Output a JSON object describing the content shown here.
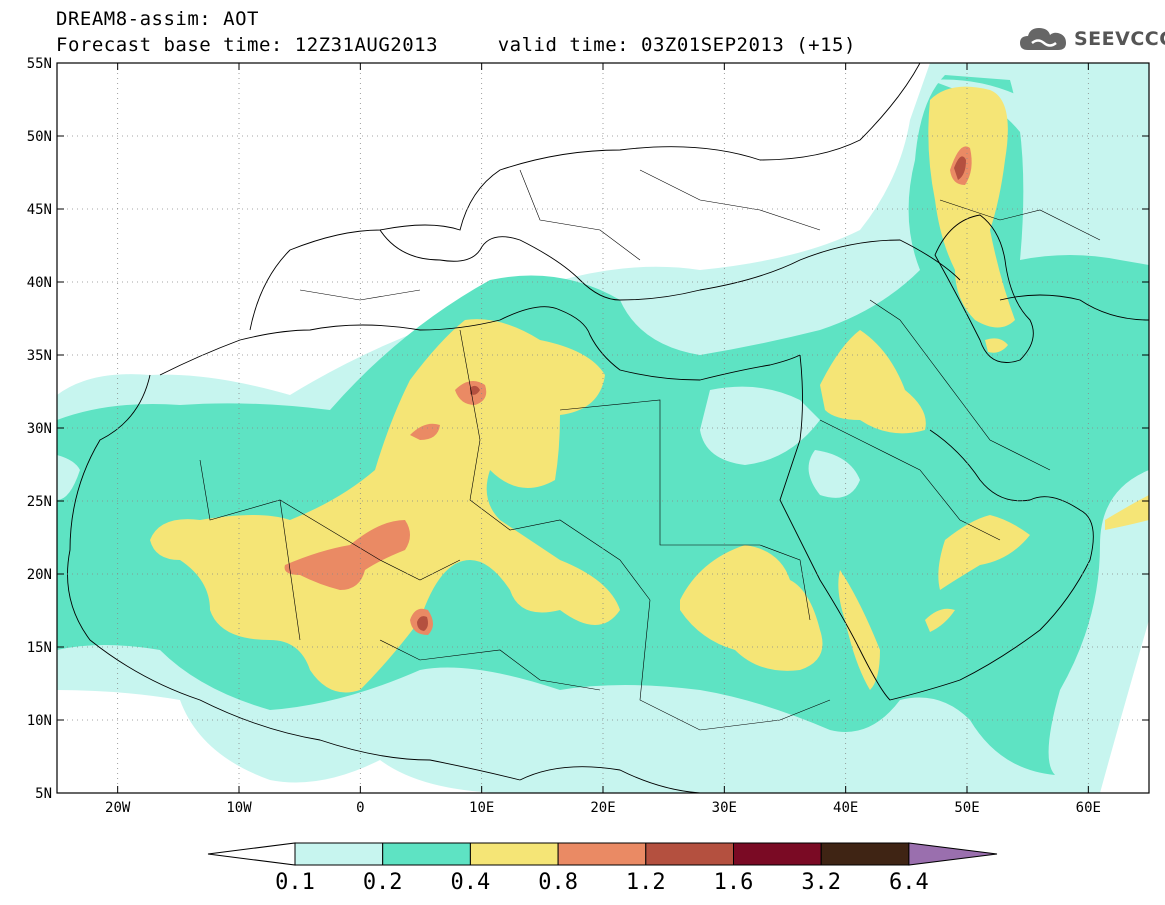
{
  "header": {
    "title": "DREAM8-assim: AOT",
    "subtitle": "Forecast base time: 12Z31AUG2013     valid time: 03Z01SEP2013 (+15)",
    "logo_text": "SEEVCCC",
    "logo_icon": "cloud-icon"
  },
  "map": {
    "lon_range": [
      -25,
      65
    ],
    "lat_range": [
      5,
      55
    ],
    "lon_ticks": [
      {
        "v": -20,
        "label": "20W"
      },
      {
        "v": -10,
        "label": "10W"
      },
      {
        "v": 0,
        "label": "0"
      },
      {
        "v": 10,
        "label": "10E"
      },
      {
        "v": 20,
        "label": "20E"
      },
      {
        "v": 30,
        "label": "30E"
      },
      {
        "v": 40,
        "label": "40E"
      },
      {
        "v": 50,
        "label": "50E"
      },
      {
        "v": 60,
        "label": "60E"
      }
    ],
    "lat_ticks": [
      {
        "v": 5,
        "label": "5N"
      },
      {
        "v": 10,
        "label": "10N"
      },
      {
        "v": 15,
        "label": "15N"
      },
      {
        "v": 20,
        "label": "20N"
      },
      {
        "v": 25,
        "label": "25N"
      },
      {
        "v": 30,
        "label": "30N"
      },
      {
        "v": 35,
        "label": "35N"
      },
      {
        "v": 40,
        "label": "40N"
      },
      {
        "v": 45,
        "label": "45N"
      },
      {
        "v": 50,
        "label": "50N"
      },
      {
        "v": 55,
        "label": "55N"
      }
    ]
  },
  "colorbar": {
    "labels": [
      "0.1",
      "0.2",
      "0.4",
      "0.8",
      "1.2",
      "1.6",
      "3.2",
      "6.4"
    ],
    "colors": [
      "#ffffff",
      "#c7f5ef",
      "#5ee3c3",
      "#f5e576",
      "#ea8a64",
      "#b4503f",
      "#7a0a24",
      "#3f2414",
      "#9a6fae"
    ]
  }
}
